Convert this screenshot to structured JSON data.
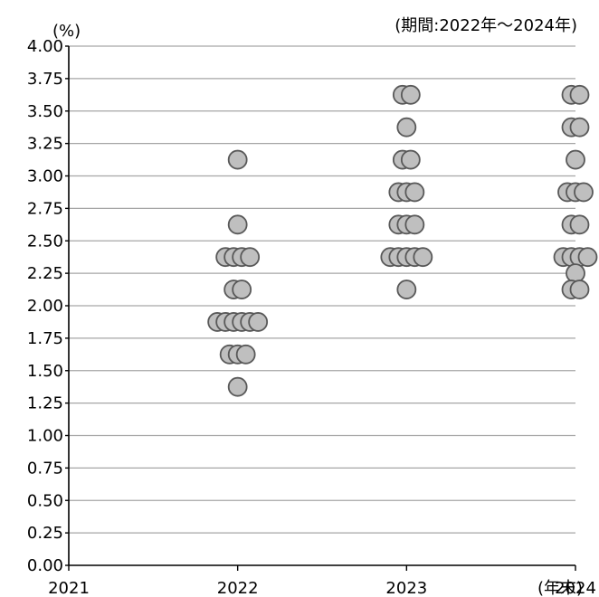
{
  "chart_data": {
    "type": "scatter",
    "title": "",
    "unit_label": "(%)",
    "period_label": "(期間:2022年～2024年)",
    "xlabel": "(年末)",
    "ylabel": "",
    "xlim": [
      2021,
      2024
    ],
    "ylim": [
      0,
      4
    ],
    "x_ticks": [
      "2021",
      "2022",
      "2023",
      "2024"
    ],
    "y_ticks": [
      "0.00",
      "0.25",
      "0.50",
      "0.75",
      "1.00",
      "1.25",
      "1.50",
      "1.75",
      "2.00",
      "2.25",
      "2.50",
      "2.75",
      "3.00",
      "3.25",
      "3.50",
      "3.75",
      "4.00"
    ],
    "grid": true,
    "legend": "none",
    "colors": {
      "dot_fill": "#bfbfbf",
      "dot_stroke": "#595959",
      "grid": "#a6a6a6"
    },
    "points": [
      {
        "x": 2022,
        "y": 3.125,
        "count": 1
      },
      {
        "x": 2022,
        "y": 2.625,
        "count": 1
      },
      {
        "x": 2022,
        "y": 2.375,
        "count": 4
      },
      {
        "x": 2022,
        "y": 2.125,
        "count": 2
      },
      {
        "x": 2022,
        "y": 1.875,
        "count": 6
      },
      {
        "x": 2022,
        "y": 1.625,
        "count": 3
      },
      {
        "x": 2022,
        "y": 1.375,
        "count": 1
      },
      {
        "x": 2023,
        "y": 3.625,
        "count": 2
      },
      {
        "x": 2023,
        "y": 3.375,
        "count": 1
      },
      {
        "x": 2023,
        "y": 3.125,
        "count": 2
      },
      {
        "x": 2023,
        "y": 2.875,
        "count": 3
      },
      {
        "x": 2023,
        "y": 2.625,
        "count": 3
      },
      {
        "x": 2023,
        "y": 2.375,
        "count": 5
      },
      {
        "x": 2023,
        "y": 2.125,
        "count": 1
      },
      {
        "x": 2024,
        "y": 3.625,
        "count": 2
      },
      {
        "x": 2024,
        "y": 3.375,
        "count": 2
      },
      {
        "x": 2024,
        "y": 3.125,
        "count": 1
      },
      {
        "x": 2024,
        "y": 2.875,
        "count": 3
      },
      {
        "x": 2024,
        "y": 2.625,
        "count": 2
      },
      {
        "x": 2024,
        "y": 2.375,
        "count": 4
      },
      {
        "x": 2024,
        "y": 2.25,
        "count": 1
      },
      {
        "x": 2024,
        "y": 2.125,
        "count": 2
      }
    ]
  }
}
